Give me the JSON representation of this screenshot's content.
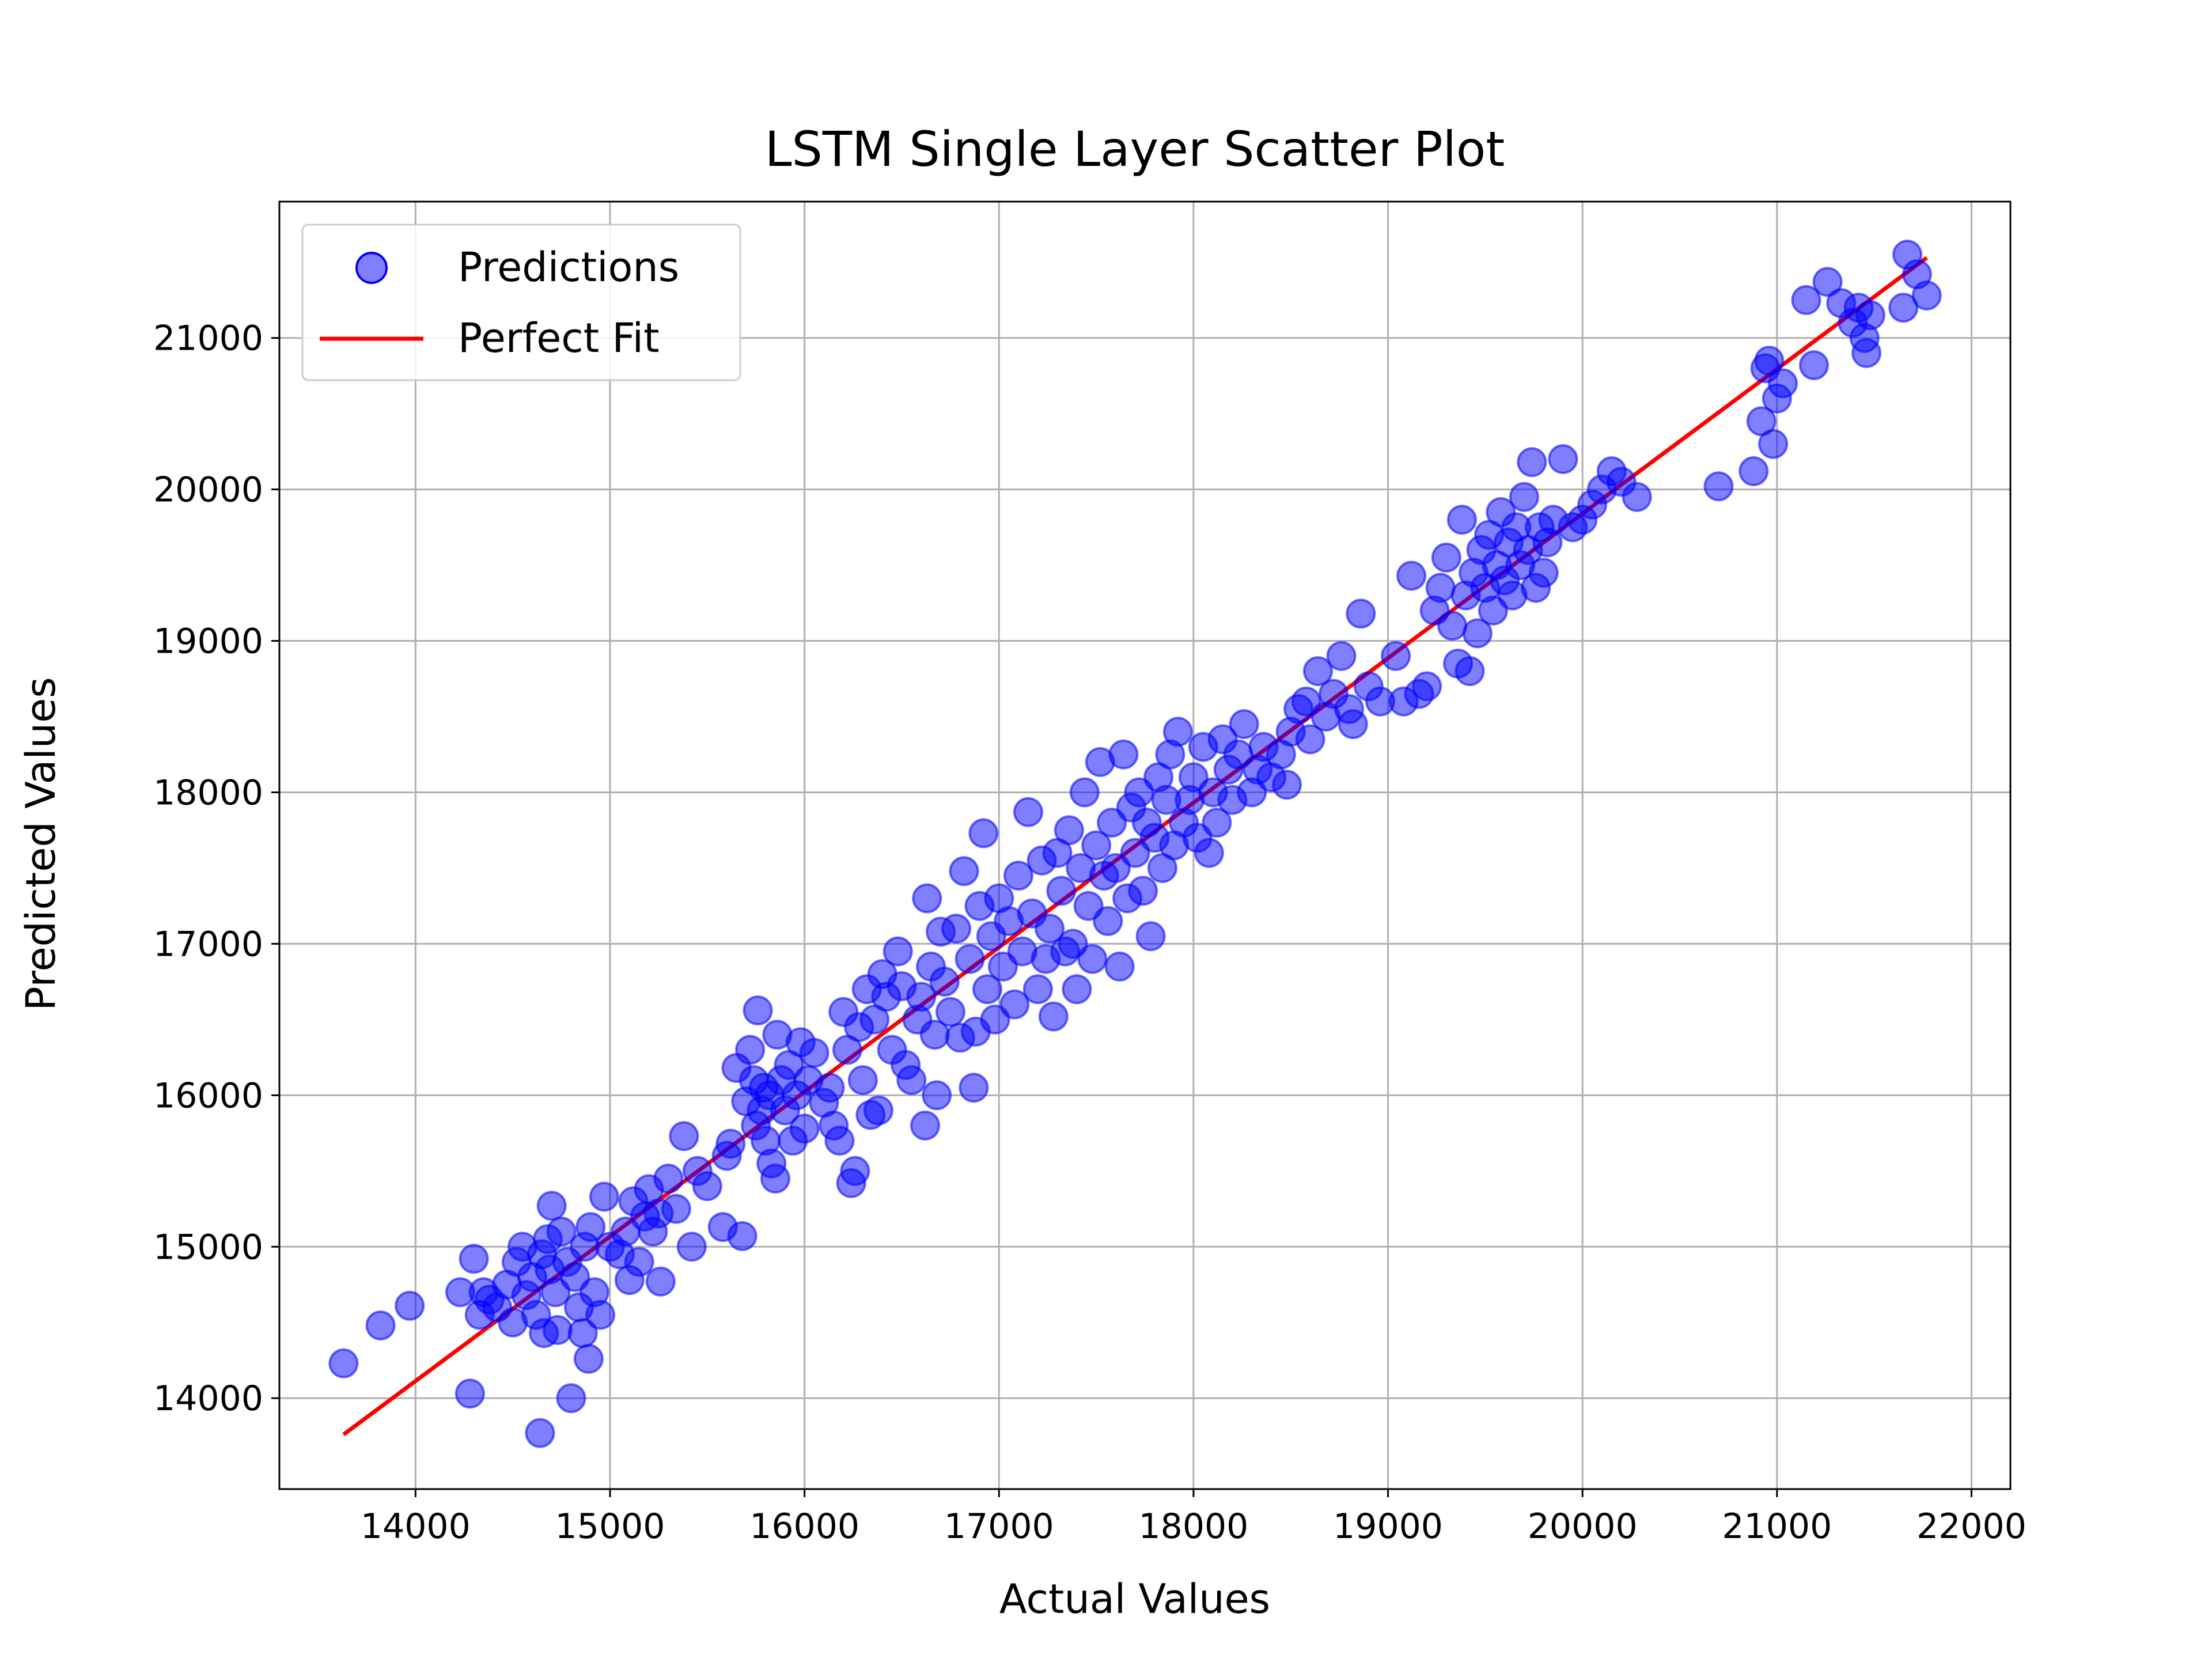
{
  "chart_data": {
    "type": "scatter",
    "title": "LSTM Single Layer Scatter Plot",
    "xlabel": "Actual Values",
    "ylabel": "Predicted Values",
    "xlim": [
      13300,
      22200
    ],
    "ylim": [
      13400,
      21900
    ],
    "xticks": [
      14000,
      15000,
      16000,
      17000,
      18000,
      19000,
      20000,
      21000,
      22000
    ],
    "yticks": [
      14000,
      15000,
      16000,
      17000,
      18000,
      19000,
      20000,
      21000
    ],
    "xtick_labels": [
      "14000",
      "15000",
      "16000",
      "17000",
      "18000",
      "19000",
      "20000",
      "21000",
      "22000"
    ],
    "ytick_labels": [
      "14000",
      "15000",
      "16000",
      "17000",
      "18000",
      "19000",
      "20000",
      "21000"
    ],
    "grid": true,
    "legend_position": "top-left",
    "colors": {
      "scatter": "#0000ff",
      "fit_line": "#ff0000",
      "grid": "#b0b0b0",
      "axes": "#000000",
      "legend_border": "#cccccc"
    },
    "series": [
      {
        "name": "Predictions",
        "kind": "scatter",
        "points": [
          [
            13630,
            14230
          ],
          [
            13820,
            14480
          ],
          [
            13970,
            14610
          ],
          [
            14230,
            14700
          ],
          [
            14280,
            14030
          ],
          [
            14300,
            14920
          ],
          [
            14330,
            14550
          ],
          [
            14350,
            14700
          ],
          [
            14380,
            14650
          ],
          [
            14420,
            14600
          ],
          [
            14470,
            14750
          ],
          [
            14500,
            14500
          ],
          [
            14520,
            14900
          ],
          [
            14550,
            15000
          ],
          [
            14570,
            14680
          ],
          [
            14600,
            14800
          ],
          [
            14620,
            14550
          ],
          [
            14640,
            13770
          ],
          [
            14650,
            14950
          ],
          [
            14660,
            14430
          ],
          [
            14680,
            15050
          ],
          [
            14690,
            14850
          ],
          [
            14700,
            15270
          ],
          [
            14720,
            14700
          ],
          [
            14730,
            14450
          ],
          [
            14750,
            15100
          ],
          [
            14780,
            14900
          ],
          [
            14800,
            14000
          ],
          [
            14820,
            14800
          ],
          [
            14840,
            14600
          ],
          [
            14860,
            14430
          ],
          [
            14870,
            15000
          ],
          [
            14890,
            14260
          ],
          [
            14900,
            15130
          ],
          [
            14920,
            14700
          ],
          [
            14950,
            14550
          ],
          [
            14970,
            15330
          ],
          [
            15000,
            15000
          ],
          [
            15050,
            14950
          ],
          [
            15080,
            15100
          ],
          [
            15100,
            14780
          ],
          [
            15120,
            15300
          ],
          [
            15150,
            14900
          ],
          [
            15180,
            15200
          ],
          [
            15200,
            15380
          ],
          [
            15220,
            15100
          ],
          [
            15250,
            15220
          ],
          [
            15260,
            14770
          ],
          [
            15300,
            15450
          ],
          [
            15340,
            15250
          ],
          [
            15380,
            15730
          ],
          [
            15420,
            15000
          ],
          [
            15450,
            15500
          ],
          [
            15500,
            15400
          ],
          [
            15580,
            15130
          ],
          [
            15600,
            15600
          ],
          [
            15620,
            15680
          ],
          [
            15650,
            16180
          ],
          [
            15680,
            15070
          ],
          [
            15700,
            15960
          ],
          [
            15720,
            16300
          ],
          [
            15740,
            16100
          ],
          [
            15750,
            15800
          ],
          [
            15760,
            16560
          ],
          [
            15780,
            15900
          ],
          [
            15790,
            16050
          ],
          [
            15800,
            15700
          ],
          [
            15820,
            16000
          ],
          [
            15830,
            15550
          ],
          [
            15850,
            15450
          ],
          [
            15860,
            16400
          ],
          [
            15880,
            16100
          ],
          [
            15900,
            15900
          ],
          [
            15920,
            16200
          ],
          [
            15940,
            15700
          ],
          [
            15960,
            16000
          ],
          [
            15980,
            16350
          ],
          [
            16000,
            15780
          ],
          [
            16020,
            16100
          ],
          [
            16050,
            16280
          ],
          [
            16100,
            15950
          ],
          [
            16130,
            16050
          ],
          [
            16150,
            15800
          ],
          [
            16180,
            15700
          ],
          [
            16200,
            16550
          ],
          [
            16220,
            16300
          ],
          [
            16240,
            15420
          ],
          [
            16260,
            15500
          ],
          [
            16280,
            16450
          ],
          [
            16300,
            16100
          ],
          [
            16320,
            16700
          ],
          [
            16340,
            15870
          ],
          [
            16360,
            16500
          ],
          [
            16380,
            15900
          ],
          [
            16400,
            16800
          ],
          [
            16420,
            16650
          ],
          [
            16450,
            16300
          ],
          [
            16480,
            16950
          ],
          [
            16500,
            16720
          ],
          [
            16520,
            16200
          ],
          [
            16550,
            16100
          ],
          [
            16580,
            16500
          ],
          [
            16600,
            16650
          ],
          [
            16620,
            15800
          ],
          [
            16630,
            17300
          ],
          [
            16650,
            16850
          ],
          [
            16670,
            16400
          ],
          [
            16680,
            16000
          ],
          [
            16700,
            17080
          ],
          [
            16720,
            16750
          ],
          [
            16750,
            16550
          ],
          [
            16780,
            17100
          ],
          [
            16800,
            16380
          ],
          [
            16820,
            17480
          ],
          [
            16850,
            16900
          ],
          [
            16870,
            16050
          ],
          [
            16880,
            16420
          ],
          [
            16900,
            17250
          ],
          [
            16920,
            17730
          ],
          [
            16940,
            16700
          ],
          [
            16960,
            17050
          ],
          [
            16980,
            16500
          ],
          [
            17000,
            17300
          ],
          [
            17020,
            16850
          ],
          [
            17050,
            17150
          ],
          [
            17080,
            16600
          ],
          [
            17100,
            17450
          ],
          [
            17120,
            16950
          ],
          [
            17150,
            17870
          ],
          [
            17170,
            17200
          ],
          [
            17200,
            16700
          ],
          [
            17220,
            17550
          ],
          [
            17240,
            16900
          ],
          [
            17260,
            17100
          ],
          [
            17280,
            16520
          ],
          [
            17300,
            17600
          ],
          [
            17320,
            17350
          ],
          [
            17340,
            16950
          ],
          [
            17360,
            17750
          ],
          [
            17380,
            17000
          ],
          [
            17400,
            16700
          ],
          [
            17420,
            17500
          ],
          [
            17440,
            18000
          ],
          [
            17460,
            17250
          ],
          [
            17480,
            16900
          ],
          [
            17500,
            17650
          ],
          [
            17520,
            18200
          ],
          [
            17540,
            17450
          ],
          [
            17560,
            17150
          ],
          [
            17580,
            17800
          ],
          [
            17600,
            17500
          ],
          [
            17620,
            16850
          ],
          [
            17640,
            18250
          ],
          [
            17660,
            17300
          ],
          [
            17680,
            17900
          ],
          [
            17700,
            17600
          ],
          [
            17720,
            18000
          ],
          [
            17740,
            17350
          ],
          [
            17760,
            17800
          ],
          [
            17780,
            17050
          ],
          [
            17800,
            17700
          ],
          [
            17820,
            18100
          ],
          [
            17840,
            17500
          ],
          [
            17860,
            17950
          ],
          [
            17880,
            18250
          ],
          [
            17900,
            17650
          ],
          [
            17920,
            18400
          ],
          [
            17950,
            17800
          ],
          [
            17980,
            17950
          ],
          [
            18000,
            18100
          ],
          [
            18020,
            17700
          ],
          [
            18050,
            18300
          ],
          [
            18080,
            17600
          ],
          [
            18100,
            18000
          ],
          [
            18120,
            17800
          ],
          [
            18150,
            18350
          ],
          [
            18180,
            18150
          ],
          [
            18200,
            17950
          ],
          [
            18230,
            18250
          ],
          [
            18260,
            18450
          ],
          [
            18300,
            18000
          ],
          [
            18330,
            18150
          ],
          [
            18360,
            18300
          ],
          [
            18400,
            18100
          ],
          [
            18450,
            18250
          ],
          [
            18480,
            18050
          ],
          [
            18500,
            18400
          ],
          [
            18540,
            18550
          ],
          [
            18580,
            18600
          ],
          [
            18600,
            18350
          ],
          [
            18640,
            18800
          ],
          [
            18680,
            18500
          ],
          [
            18720,
            18650
          ],
          [
            18760,
            18900
          ],
          [
            18800,
            18550
          ],
          [
            18820,
            18450
          ],
          [
            18860,
            19180
          ],
          [
            18900,
            18700
          ],
          [
            18960,
            18600
          ],
          [
            19040,
            18900
          ],
          [
            19080,
            18600
          ],
          [
            19120,
            19430
          ],
          [
            19160,
            18650
          ],
          [
            19200,
            18700
          ],
          [
            19240,
            19200
          ],
          [
            19270,
            19350
          ],
          [
            19300,
            19550
          ],
          [
            19330,
            19100
          ],
          [
            19360,
            18850
          ],
          [
            19380,
            19800
          ],
          [
            19400,
            19300
          ],
          [
            19420,
            18800
          ],
          [
            19440,
            19450
          ],
          [
            19460,
            19050
          ],
          [
            19480,
            19600
          ],
          [
            19500,
            19350
          ],
          [
            19520,
            19700
          ],
          [
            19540,
            19200
          ],
          [
            19560,
            19500
          ],
          [
            19580,
            19850
          ],
          [
            19600,
            19400
          ],
          [
            19620,
            19650
          ],
          [
            19640,
            19300
          ],
          [
            19660,
            19750
          ],
          [
            19680,
            19500
          ],
          [
            19700,
            19950
          ],
          [
            19720,
            19600
          ],
          [
            19740,
            20180
          ],
          [
            19760,
            19350
          ],
          [
            19780,
            19750
          ],
          [
            19800,
            19450
          ],
          [
            19820,
            19650
          ],
          [
            19850,
            19800
          ],
          [
            19900,
            20200
          ],
          [
            19950,
            19750
          ],
          [
            20000,
            19800
          ],
          [
            20050,
            19900
          ],
          [
            20100,
            20000
          ],
          [
            20150,
            20120
          ],
          [
            20200,
            20050
          ],
          [
            20280,
            19950
          ],
          [
            20700,
            20020
          ],
          [
            20880,
            20120
          ],
          [
            20920,
            20450
          ],
          [
            20940,
            20800
          ],
          [
            20960,
            20850
          ],
          [
            20980,
            20300
          ],
          [
            21000,
            20600
          ],
          [
            21030,
            20700
          ],
          [
            21150,
            21250
          ],
          [
            21190,
            20820
          ],
          [
            21260,
            21370
          ],
          [
            21330,
            21230
          ],
          [
            21390,
            21100
          ],
          [
            21420,
            21200
          ],
          [
            21450,
            21000
          ],
          [
            21460,
            20900
          ],
          [
            21480,
            21150
          ],
          [
            21650,
            21200
          ],
          [
            21670,
            21550
          ],
          [
            21720,
            21420
          ],
          [
            21770,
            21280
          ]
        ]
      },
      {
        "name": "Perfect Fit",
        "kind": "line",
        "x": [
          13630,
          21770
        ],
        "y": [
          13760,
          21530
        ]
      }
    ]
  }
}
